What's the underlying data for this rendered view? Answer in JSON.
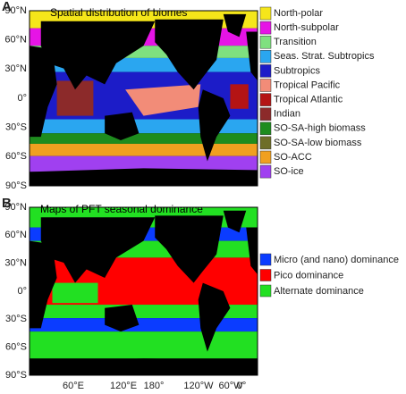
{
  "panels": [
    {
      "label": "A",
      "title": "Spatial distribution of biomes",
      "legend": [
        {
          "name": "North-polar",
          "color": "#f5e61a"
        },
        {
          "name": "North-subpolar",
          "color": "#e614e6"
        },
        {
          "name": "Transition",
          "color": "#7fe07f"
        },
        {
          "name": "Seas. Strat. Subtropics",
          "color": "#2aa6f0"
        },
        {
          "name": "Subtropics",
          "color": "#1c1cc8"
        },
        {
          "name": "Tropical Pacific",
          "color": "#f28c78"
        },
        {
          "name": "Tropical Atlantic",
          "color": "#b41414"
        },
        {
          "name": "Indian",
          "color": "#8c2a2a"
        },
        {
          "name": "SO-SA-high biomass",
          "color": "#1e8c1e"
        },
        {
          "name": "SO-SA-low biomass",
          "color": "#6e6e28"
        },
        {
          "name": "SO-ACC",
          "color": "#f0a020"
        },
        {
          "name": "SO-ice",
          "color": "#a040f0"
        }
      ],
      "yticks": [
        "90°N",
        "60°N",
        "30°N",
        "0°",
        "30°S",
        "60°S",
        "90°S"
      ]
    },
    {
      "label": "B",
      "title": "Maps of PFT seasonal dominance",
      "legend": [
        {
          "name": "Micro (and nano) dominance",
          "color": "#0b3cff"
        },
        {
          "name": "Pico dominance",
          "color": "#ff0000"
        },
        {
          "name": "Alternate dominance",
          "color": "#22e022"
        }
      ],
      "yticks": [
        "90°N",
        "60°N",
        "30°N",
        "0°",
        "30°S",
        "60°S",
        "90°S"
      ]
    }
  ],
  "xticks": [
    "60°E",
    "120°E",
    "180°",
    "120°W",
    "60°W",
    "0°"
  ]
}
